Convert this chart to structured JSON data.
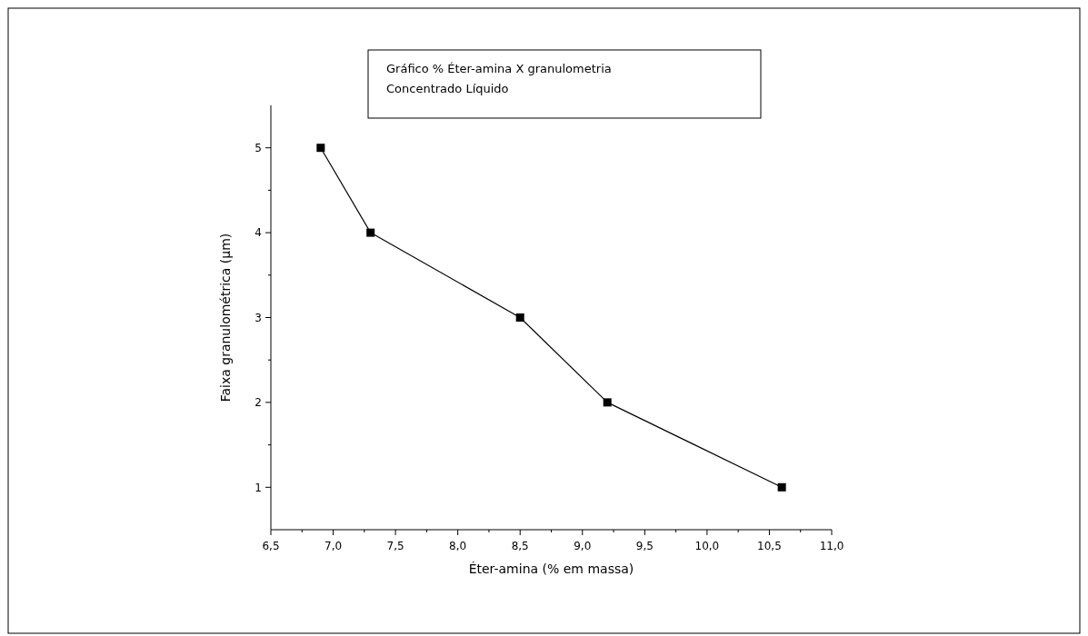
{
  "chart_data": {
    "type": "line",
    "title": "Gráfico % Éter-amina X granulometria",
    "subtitle": "Concentrado Líquido",
    "xlabel": "Éter-amina (% em massa)",
    "ylabel": "Faixa granulométrica (µm)",
    "x": [
      6.9,
      7.3,
      8.5,
      9.2,
      10.6
    ],
    "series": [
      {
        "color": "#000000",
        "values": [
          5,
          4,
          3,
          2,
          1
        ]
      }
    ],
    "xlim": [
      6.5,
      11.0
    ],
    "xticks": [
      {
        "value": 6.5,
        "label": "6,5"
      },
      {
        "value": 6.75,
        "label": null
      },
      {
        "value": 7.0,
        "label": "7,0"
      },
      {
        "value": 7.25,
        "label": null
      },
      {
        "value": 7.5,
        "label": "7,5"
      },
      {
        "value": 7.75,
        "label": null
      },
      {
        "value": 8.0,
        "label": "8,0"
      },
      {
        "value": 8.25,
        "label": null
      },
      {
        "value": 8.5,
        "label": "8,5"
      },
      {
        "value": 8.75,
        "label": null
      },
      {
        "value": 9.0,
        "label": "9,0"
      },
      {
        "value": 9.25,
        "label": null
      },
      {
        "value": 9.5,
        "label": "9,5"
      },
      {
        "value": 9.75,
        "label": null
      },
      {
        "value": 10.0,
        "label": "10,0"
      },
      {
        "value": 10.25,
        "label": null
      },
      {
        "value": 10.5,
        "label": "10,5"
      },
      {
        "value": 10.75,
        "label": null
      },
      {
        "value": 11.0,
        "label": "11,0"
      }
    ],
    "ylim": [
      0.5,
      5.5
    ],
    "yticks": [
      {
        "value": 1,
        "label": "1"
      },
      {
        "value": 1.5,
        "label": null
      },
      {
        "value": 2,
        "label": "2"
      },
      {
        "value": 2.5,
        "label": null
      },
      {
        "value": 3,
        "label": "3"
      },
      {
        "value": 3.5,
        "label": null
      },
      {
        "value": 4,
        "label": "4"
      },
      {
        "value": 4.5,
        "label": null
      },
      {
        "value": 5,
        "label": "5"
      }
    ],
    "marker": "square",
    "line_style": "solid",
    "grid": false
  }
}
